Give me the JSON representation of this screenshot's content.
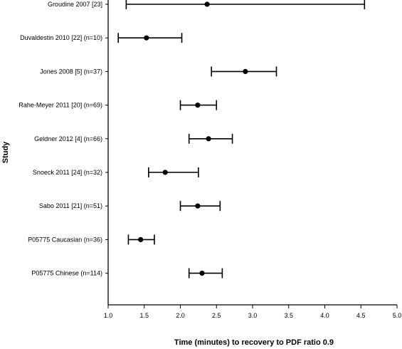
{
  "chart_data": {
    "type": "forest",
    "title": "",
    "xlabel": "Time (minutes) to recovery to PDF ratio 0.9",
    "ylabel": "Study",
    "xlim": [
      1.0,
      5.0
    ],
    "xticks": [
      1.0,
      1.5,
      2.0,
      2.5,
      3.0,
      3.5,
      4.0,
      4.5,
      5.0
    ],
    "xtick_labels": [
      "1.0",
      "1.5",
      "2.0",
      "2.5",
      "3.0",
      "3.5",
      "4.0",
      "4.5",
      "5.0"
    ],
    "grid": false,
    "legend": "none",
    "studies": [
      {
        "label": "Groudine 2007 [23]",
        "estimate": 2.37,
        "lower": 1.25,
        "upper": 4.55
      },
      {
        "label": "Duvaldestin 2010 [22] (n=10)",
        "estimate": 1.53,
        "lower": 1.14,
        "upper": 2.02
      },
      {
        "label": "Jones 2008 [5] (n=37)",
        "estimate": 2.9,
        "lower": 2.43,
        "upper": 3.33
      },
      {
        "label": "Rahe-Meyer 2011 [20] (n=69)",
        "estimate": 2.24,
        "lower": 2.0,
        "upper": 2.5
      },
      {
        "label": "Geldner 2012 [4] (n=66)",
        "estimate": 2.39,
        "lower": 2.12,
        "upper": 2.72
      },
      {
        "label": "Snoeck 2011 [24] (n=32)",
        "estimate": 1.79,
        "lower": 1.56,
        "upper": 2.25
      },
      {
        "label": "Sabo 2011 [21] (n=51)",
        "estimate": 2.24,
        "lower": 2.0,
        "upper": 2.55
      },
      {
        "label": "P05775 Caucasian (n=36)",
        "estimate": 1.45,
        "lower": 1.28,
        "upper": 1.64
      },
      {
        "label": "P05775 Chinese (n=114)",
        "estimate": 2.3,
        "lower": 2.12,
        "upper": 2.58
      }
    ]
  }
}
